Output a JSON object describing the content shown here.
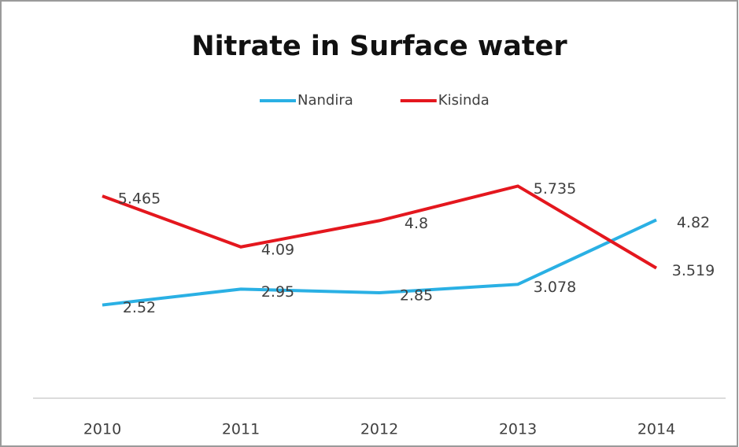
{
  "chart_data": {
    "type": "line",
    "title": "Nitrate in Surface water",
    "categories": [
      "2010",
      "2011",
      "2012",
      "2013",
      "2014"
    ],
    "series": [
      {
        "name": "Nandira",
        "color": "#2ab0e4",
        "values": [
          2.52,
          2.95,
          2.85,
          3.078,
          4.82
        ]
      },
      {
        "name": "Kisinda",
        "color": "#e4171e",
        "values": [
          5.465,
          4.09,
          4.8,
          5.735,
          3.519
        ]
      }
    ],
    "ylim": [
      0,
      8
    ],
    "legend": "top"
  }
}
